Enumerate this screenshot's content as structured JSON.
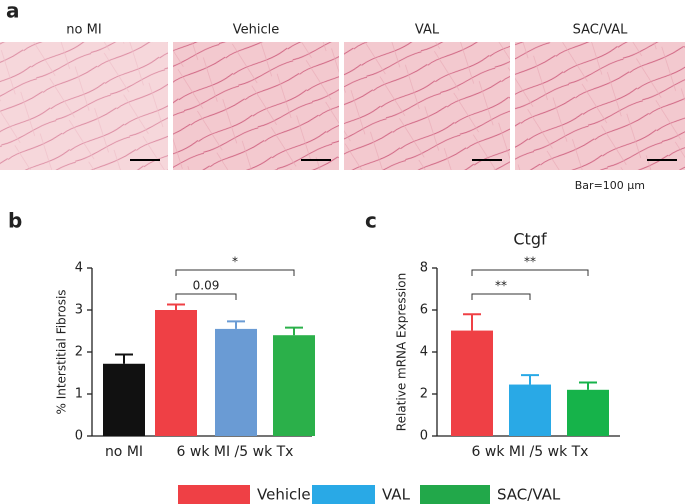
{
  "panel_a": {
    "letter": "a",
    "images": [
      "no MI",
      "Vehicle",
      "VAL",
      "SAC/VAL"
    ],
    "scale_note": "Bar=100 μm"
  },
  "chart_data": [
    {
      "type": "bar",
      "letter": "b",
      "ylabel": "% Interstitial Fibrosis",
      "categories": [
        "no MI",
        null,
        null,
        null
      ],
      "group_label": "6 wk MI /5 wk Tx",
      "values": [
        1.72,
        3.0,
        2.55,
        2.4
      ],
      "errors": [
        0.22,
        0.13,
        0.18,
        0.18
      ],
      "colors": [
        "#111111",
        "#ef4045",
        "#6a9bd4",
        "#2bb04a"
      ],
      "ylim": [
        0,
        4
      ],
      "yticks": [
        0,
        1,
        2,
        3,
        4
      ],
      "annotations": [
        {
          "text": "0.09",
          "from": 1,
          "to": 2
        },
        {
          "text": "*",
          "from": 1,
          "to": 3
        }
      ]
    },
    {
      "type": "bar",
      "letter": "c",
      "title": "Ctgf",
      "ylabel": "Relative mRNA Expression",
      "categories": [
        null,
        null,
        null
      ],
      "group_label": "6 wk MI /5 wk Tx",
      "values": [
        5.02,
        2.45,
        2.2
      ],
      "errors": [
        0.78,
        0.45,
        0.35
      ],
      "colors": [
        "#ef4045",
        "#29a9e6",
        "#16b34a"
      ],
      "ylim": [
        0,
        8
      ],
      "yticks": [
        0,
        2,
        4,
        6,
        8
      ],
      "annotations": [
        {
          "text": "**",
          "from": 0,
          "to": 1
        },
        {
          "text": "**",
          "from": 0,
          "to": 2
        }
      ]
    }
  ],
  "legend": [
    {
      "name": "Vehicle",
      "color": "#ef4045"
    },
    {
      "name": "VAL",
      "color": "#29a9e6"
    },
    {
      "name": "SAC/VAL",
      "color": "#22a84a"
    }
  ]
}
